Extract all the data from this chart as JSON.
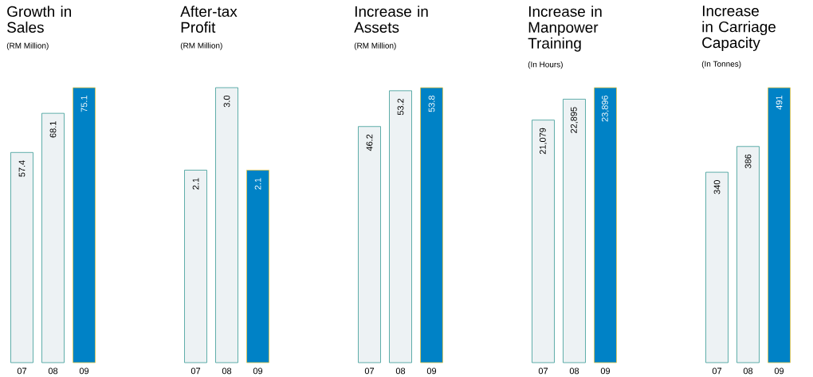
{
  "chart_data": [
    {
      "type": "bar",
      "title": "Growth in Sales",
      "subtitle": "(RM Million)",
      "categories": [
        "07",
        "08",
        "09"
      ],
      "values": [
        57.4,
        68.1,
        75.1
      ],
      "value_labels": [
        "57.4",
        "68.1",
        "75.1"
      ],
      "colors": [
        "#edf2f4",
        "#edf2f4",
        "#0082c6"
      ]
    },
    {
      "type": "bar",
      "title": "After-tax Profit",
      "subtitle": "(RM Million)",
      "categories": [
        "07",
        "08",
        "09"
      ],
      "values": [
        2.1,
        3.0,
        2.1
      ],
      "value_labels": [
        "2.1",
        "3.0",
        "2.1"
      ],
      "colors": [
        "#edf2f4",
        "#edf2f4",
        "#0082c6"
      ]
    },
    {
      "type": "bar",
      "title": "Increase in Assets",
      "subtitle": "(RM Million)",
      "categories": [
        "07",
        "08",
        "09"
      ],
      "values": [
        46.2,
        53.2,
        53.8
      ],
      "value_labels": [
        "46.2",
        "53.2",
        "53.8"
      ],
      "colors": [
        "#edf2f4",
        "#edf2f4",
        "#0082c6"
      ]
    },
    {
      "type": "bar",
      "title": "Increase in Manpower Training",
      "subtitle": "(In Hours)",
      "categories": [
        "07",
        "08",
        "09"
      ],
      "values": [
        21079,
        22895,
        23896
      ],
      "value_labels": [
        "21,079",
        "22,895",
        "23,896"
      ],
      "colors": [
        "#edf2f4",
        "#edf2f4",
        "#0082c6"
      ]
    },
    {
      "type": "bar",
      "title": "Increase in Carriage Capacity",
      "subtitle": "(In Tonnes)",
      "categories": [
        "07",
        "08",
        "09"
      ],
      "values": [
        340,
        386,
        491
      ],
      "value_labels": [
        "340",
        "386",
        "491"
      ],
      "colors": [
        "#edf2f4",
        "#edf2f4",
        "#0082c6"
      ]
    }
  ]
}
